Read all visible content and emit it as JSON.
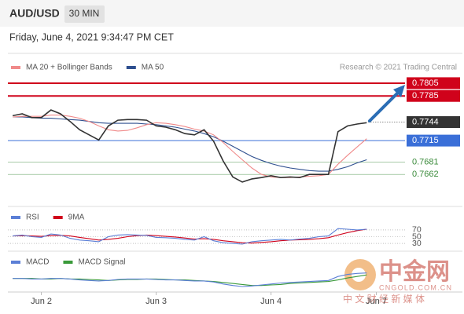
{
  "header": {
    "symbol": "AUD/USD",
    "timeframe": "30 MIN",
    "timestamp": "Friday, June 4, 2021 9:34:47 PM CET",
    "credit": "Research © 2021 Trading Central"
  },
  "watermark": {
    "brand": "中金网",
    "site": "CNGOLD.COM.CN",
    "slogan": "中 文 财 经 新 媒 体"
  },
  "chart_data": [
    {
      "type": "line",
      "xlim": [
        -7,
        88
      ],
      "ylim": [
        0.7613,
        0.7816
      ],
      "x": [
        -6,
        -4,
        -2,
        0,
        2,
        4,
        6,
        8,
        10,
        12,
        14,
        16,
        18,
        20,
        22,
        24,
        26,
        28,
        30,
        32,
        34,
        36,
        38,
        40,
        42,
        44,
        46,
        48,
        50,
        52,
        54,
        56,
        58,
        60,
        62,
        64,
        66,
        68
      ],
      "series": [
        {
          "name": "price",
          "color": "#333333",
          "values": [
            0.7754,
            0.7757,
            0.7751,
            0.7751,
            0.7763,
            0.7757,
            0.7745,
            0.7732,
            0.7724,
            0.7716,
            0.7738,
            0.7747,
            0.7748,
            0.7748,
            0.7747,
            0.7738,
            0.7736,
            0.7732,
            0.7726,
            0.7724,
            0.7732,
            0.7714,
            0.7683,
            0.7658,
            0.765,
            0.7655,
            0.7657,
            0.766,
            0.7657,
            0.7658,
            0.7657,
            0.7662,
            0.7662,
            0.7662,
            0.7729,
            0.7738,
            0.7741,
            0.7743
          ]
        },
        {
          "name": "MA 20 + Bollinger Bands",
          "color": "#f08a8a",
          "values": [
            0.7752,
            0.7753,
            0.7753,
            0.7753,
            0.7755,
            0.7755,
            0.7753,
            0.775,
            0.7745,
            0.7738,
            0.7732,
            0.773,
            0.7731,
            0.7735,
            0.774,
            0.7743,
            0.7742,
            0.774,
            0.7737,
            0.7733,
            0.773,
            0.7724,
            0.7712,
            0.7698,
            0.7685,
            0.7672,
            0.7662,
            0.7658,
            0.7657,
            0.7657,
            0.7658,
            0.7659,
            0.766,
            0.7662,
            0.7678,
            0.7692,
            0.7705,
            0.7718
          ]
        },
        {
          "name": "MA 50",
          "color": "#2e4f8f",
          "values": [
            0.7752,
            0.7752,
            0.7751,
            0.775,
            0.775,
            0.7749,
            0.7748,
            0.7747,
            0.7745,
            0.7743,
            0.7742,
            0.7742,
            0.7742,
            0.7742,
            0.7741,
            0.774,
            0.7738,
            0.7736,
            0.7733,
            0.773,
            0.7726,
            0.7721,
            0.7714,
            0.7706,
            0.7698,
            0.769,
            0.7684,
            0.7679,
            0.7675,
            0.7672,
            0.767,
            0.7668,
            0.7667,
            0.7667,
            0.767,
            0.7674,
            0.768,
            0.7685
          ]
        }
      ],
      "levels": [
        {
          "value": 0.7805,
          "color": "#d0021b",
          "style": "box"
        },
        {
          "value": 0.7785,
          "color": "#d0021b",
          "style": "box"
        },
        {
          "value": 0.7744,
          "color": "#333333",
          "style": "current"
        },
        {
          "value": 0.7715,
          "color": "#3a6fd8",
          "style": "box"
        },
        {
          "value": 0.7681,
          "color": "#3a8a3a",
          "style": "text"
        },
        {
          "value": 0.7662,
          "color": "#3a8a3a",
          "style": "text"
        }
      ]
    },
    {
      "type": "line",
      "xlim": [
        -7,
        88
      ],
      "ylim": [
        0,
        100
      ],
      "yticks": [
        70,
        50,
        30
      ],
      "x": [
        -6,
        -4,
        -2,
        0,
        2,
        4,
        6,
        8,
        10,
        12,
        14,
        16,
        18,
        20,
        22,
        24,
        26,
        28,
        30,
        32,
        34,
        36,
        38,
        40,
        42,
        44,
        46,
        48,
        50,
        52,
        54,
        56,
        58,
        60,
        62,
        64,
        66,
        68
      ],
      "series": [
        {
          "name": "RSI",
          "color": "#5b7fd6",
          "values": [
            52,
            55,
            50,
            48,
            58,
            55,
            45,
            40,
            38,
            35,
            50,
            55,
            56,
            55,
            54,
            48,
            47,
            45,
            42,
            40,
            50,
            38,
            32,
            30,
            28,
            35,
            38,
            40,
            42,
            40,
            43,
            45,
            50,
            52,
            74,
            72,
            70,
            72
          ]
        },
        {
          "name": "9MA",
          "color": "#d0021b",
          "values": [
            52,
            53,
            52,
            51,
            53,
            54,
            52,
            48,
            44,
            40,
            42,
            45,
            50,
            53,
            55,
            53,
            51,
            49,
            46,
            43,
            44,
            42,
            38,
            35,
            32,
            31,
            33,
            35,
            38,
            40,
            41,
            42,
            44,
            47,
            55,
            62,
            68,
            72
          ]
        }
      ]
    },
    {
      "type": "line",
      "xlim": [
        -7,
        88
      ],
      "ylim": [
        -0.0025,
        0.0025
      ],
      "xticks": [
        {
          "value": 0,
          "label": "Jun 2"
        },
        {
          "value": 24,
          "label": "Jun 3"
        },
        {
          "value": 48,
          "label": "Jun 4"
        },
        {
          "value": 70,
          "label": "Jun 7"
        }
      ],
      "x": [
        -6,
        -4,
        -2,
        0,
        2,
        4,
        6,
        8,
        10,
        12,
        14,
        16,
        18,
        20,
        22,
        24,
        26,
        28,
        30,
        32,
        34,
        36,
        38,
        40,
        42,
        44,
        46,
        48,
        50,
        52,
        54,
        56,
        58,
        60,
        62,
        64,
        66,
        68
      ],
      "series": [
        {
          "name": "MACD",
          "color": "#5b7fd6",
          "values": [
            0.0002,
            0.0002,
            0.0001,
            0.0001,
            0.0002,
            0.0002,
            0.0001,
            -0.0001,
            -0.0002,
            -0.0003,
            -0.0002,
            0,
            0.0001,
            0.0001,
            0.0001,
            0,
            -0.0001,
            -0.0001,
            -0.0002,
            -0.0003,
            -0.0003,
            -0.0005,
            -0.0009,
            -0.0012,
            -0.0014,
            -0.0013,
            -0.0011,
            -0.0009,
            -0.0007,
            -0.0006,
            -0.0005,
            -0.0004,
            -0.0003,
            -0.0002,
            0.0006,
            0.001,
            0.0012,
            0.0013
          ]
        },
        {
          "name": "MACD Signal",
          "color": "#3a9a3a",
          "values": [
            0.0002,
            0.0002,
            0.0002,
            0.0001,
            0.0001,
            0.0002,
            0.0001,
            0.0001,
            0,
            -0.0001,
            -0.0002,
            -0.0001,
            0,
            0,
            0.0001,
            0.0001,
            0,
            -0.0001,
            -0.0001,
            -0.0002,
            -0.0003,
            -0.0004,
            -0.0006,
            -0.0008,
            -0.001,
            -0.0012,
            -0.0012,
            -0.0011,
            -0.001,
            -0.0008,
            -0.0007,
            -0.0006,
            -0.0005,
            -0.0004,
            -0.0001,
            0.0003,
            0.0006,
            0.0009
          ]
        }
      ]
    }
  ]
}
